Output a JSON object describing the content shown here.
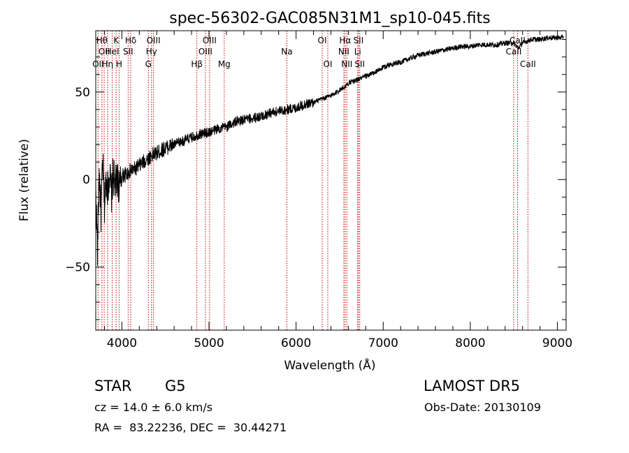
{
  "chart_data": {
    "type": "line",
    "title": "spec-56302-GAC085N31M1_sp10-045.fits",
    "xlabel": "Wavelength (Å)",
    "ylabel": "Flux (relative)",
    "xlim": [
      3700,
      9100
    ],
    "ylim": [
      -86,
      85
    ],
    "xticks": [
      4000,
      5000,
      6000,
      7000,
      8000,
      9000
    ],
    "yticks": [
      -50,
      0,
      50
    ],
    "grid": false,
    "series": [
      {
        "values_note": "",
        "x": [
          3700,
          3720,
          3740,
          3760,
          3780,
          3800,
          3820,
          3840,
          3860,
          3880,
          3900,
          3925,
          3950,
          3975,
          4000,
          4050,
          4100,
          4150,
          4200,
          4250,
          4300,
          4350,
          4400,
          4500,
          4600,
          4700,
          4800,
          4900,
          5000,
          5100,
          5200,
          5300,
          5400,
          5500,
          5600,
          5700,
          5800,
          5900,
          6000,
          6100,
          6200,
          6300,
          6400,
          6500,
          6560,
          6600,
          6700,
          6800,
          6900,
          7000,
          7100,
          7200,
          7300,
          7400,
          7500,
          7600,
          7700,
          7800,
          7900,
          8000,
          8100,
          8200,
          8300,
          8400,
          8500,
          8550,
          8600,
          8650,
          8700,
          8800,
          8900,
          9000,
          9050,
          9070
        ],
        "y": [
          -5,
          -40,
          5,
          -20,
          10,
          -15,
          0,
          -5,
          5,
          -10,
          3,
          -3,
          0,
          -5,
          2,
          3,
          5,
          6,
          8,
          10,
          12,
          14,
          15,
          18,
          20,
          22,
          24,
          26,
          27,
          29,
          30,
          33,
          34,
          35,
          36,
          38,
          39,
          40,
          41,
          43,
          44,
          46,
          48,
          51,
          53,
          55,
          57,
          59,
          61,
          64,
          66,
          67,
          69,
          71,
          72,
          73,
          74,
          75,
          76,
          76,
          77,
          77,
          77,
          78,
          78,
          75,
          78,
          79,
          80,
          80,
          81,
          81,
          81,
          82
        ]
      }
    ],
    "lines": [
      {
        "x": 3771,
        "label": "Hθ",
        "row": 1,
        "side": "left"
      },
      {
        "x": 3797,
        "label": "OII",
        "row": 2,
        "side": "left"
      },
      {
        "x": 3727,
        "label": "OII",
        "row": 3,
        "side": "left"
      },
      {
        "x": 3835,
        "label": "Hη",
        "row": 3,
        "side": "mid"
      },
      {
        "x": 3889,
        "label": "HeI",
        "row": 2,
        "side": "mid"
      },
      {
        "x": 3934,
        "label": "K",
        "row": 1,
        "side": "mid"
      },
      {
        "x": 3968,
        "label": "H",
        "row": 3,
        "side": "mid"
      },
      {
        "x": 4072,
        "label": "SII",
        "row": 2,
        "side": "mid"
      },
      {
        "x": 4102,
        "label": "Hδ",
        "row": 1,
        "side": "mid"
      },
      {
        "x": 4304,
        "label": "G",
        "row": 3,
        "side": "mid"
      },
      {
        "x": 4340,
        "label": "Hγ",
        "row": 2,
        "side": "mid"
      },
      {
        "x": 4363,
        "label": "OIII",
        "row": 1,
        "side": "mid"
      },
      {
        "x": 4861,
        "label": "Hβ",
        "row": 3,
        "side": "mid"
      },
      {
        "x": 4959,
        "label": "OIII",
        "row": 2,
        "side": "mid"
      },
      {
        "x": 5007,
        "label": "OIII",
        "row": 1,
        "side": "mid"
      },
      {
        "x": 5175,
        "label": "Mg",
        "row": 3,
        "side": "mid"
      },
      {
        "x": 5894,
        "label": "Na",
        "row": 2,
        "side": "mid"
      },
      {
        "x": 6300,
        "label": "OI",
        "row": 1,
        "side": "mid"
      },
      {
        "x": 6364,
        "label": "OI",
        "row": 3,
        "side": "mid"
      },
      {
        "x": 6548,
        "label": "NII",
        "row": 2,
        "side": "mid"
      },
      {
        "x": 6563,
        "label": "Hα",
        "row": 1,
        "side": "mid"
      },
      {
        "x": 6583,
        "label": "NII",
        "row": 3,
        "side": "mid"
      },
      {
        "x": 6707,
        "label": "Li",
        "row": 2,
        "side": "mid"
      },
      {
        "x": 6716,
        "label": "SII",
        "row": 1,
        "side": "mid"
      },
      {
        "x": 6731,
        "label": "SII",
        "row": 3,
        "side": "mid"
      },
      {
        "x": 8498,
        "label": "CaII",
        "row": 2,
        "side": "mid"
      },
      {
        "x": 8542,
        "label": "CaII",
        "row": 1,
        "side": "mid"
      },
      {
        "x": 8662,
        "label": "CaII",
        "row": 3,
        "side": "mid"
      }
    ]
  },
  "info": {
    "class_label": "STAR",
    "subclass_label": "G5",
    "survey": "LAMOST DR5",
    "cz": "cz = 14.0 ± 6.0 km/s",
    "obs_date": "Obs-Date: 20130109",
    "coords": "RA =  83.22236, DEC =  30.44271"
  }
}
